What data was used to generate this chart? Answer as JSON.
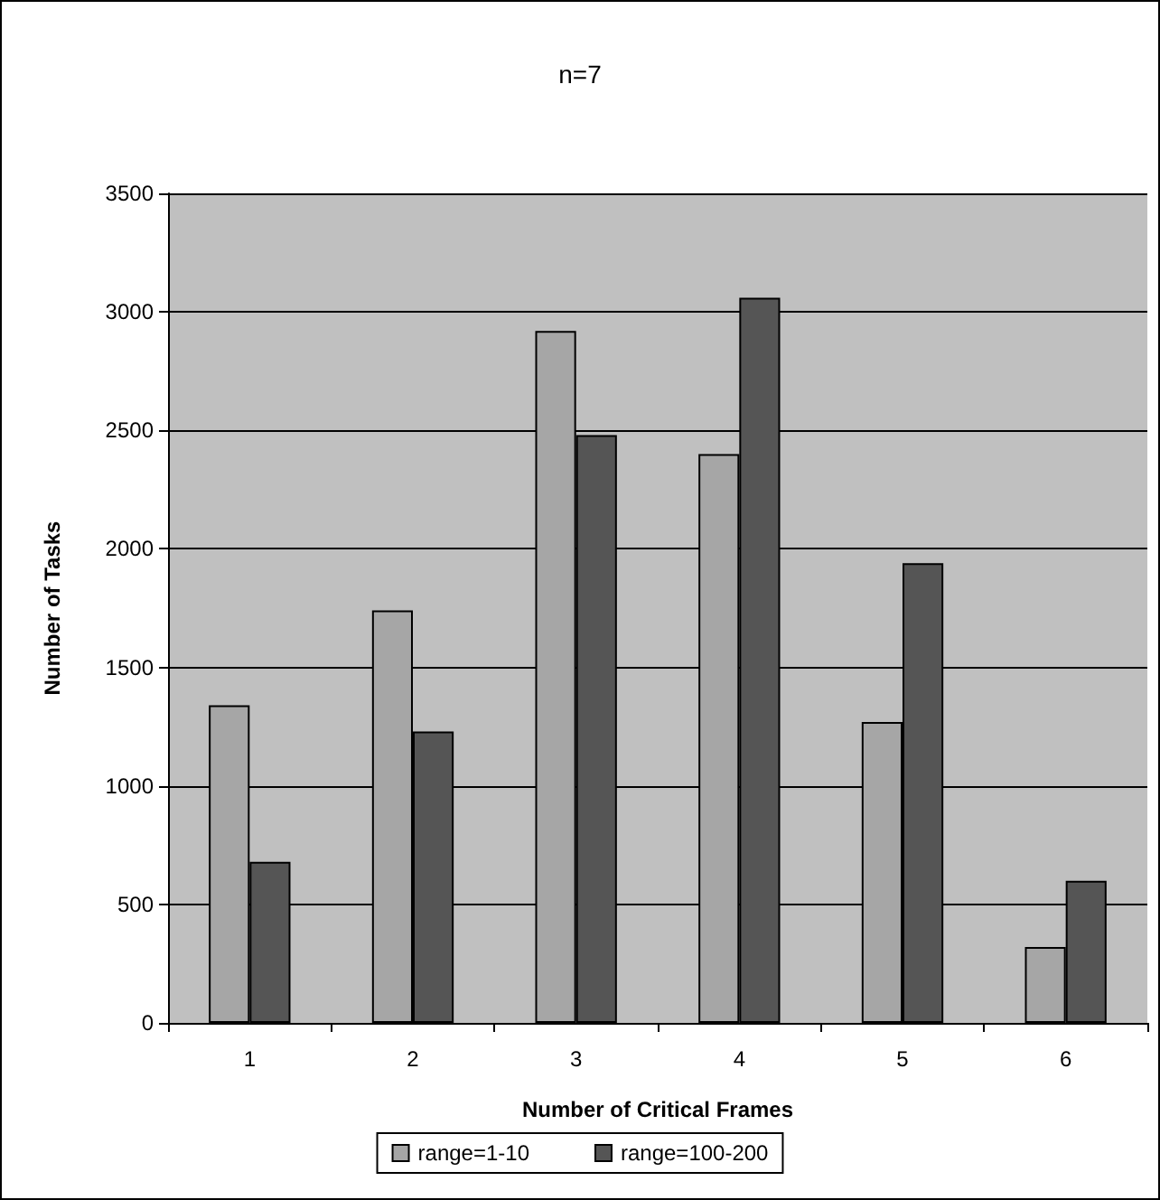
{
  "chart_data": {
    "type": "bar",
    "title": "n=7",
    "xlabel": "Number of Critical Frames",
    "ylabel": "Number of Tasks",
    "categories": [
      "1",
      "2",
      "3",
      "4",
      "5",
      "6"
    ],
    "series": [
      {
        "name": "range=1-10",
        "color": "#a6a6a6",
        "values": [
          1340,
          1740,
          2920,
          2400,
          1270,
          320
        ]
      },
      {
        "name": "range=100-200",
        "color": "#555555",
        "values": [
          680,
          1230,
          2480,
          3060,
          1940,
          600
        ]
      }
    ],
    "ylim": [
      0,
      3500
    ],
    "yticks": [
      0,
      500,
      1000,
      1500,
      2000,
      2500,
      3000,
      3500
    ],
    "grid": "y",
    "legend": "bottom"
  }
}
